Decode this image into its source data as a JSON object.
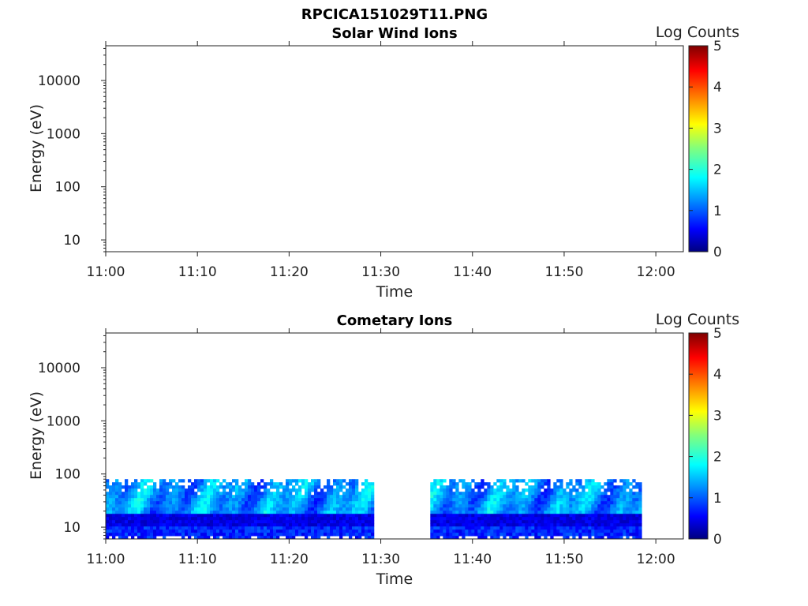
{
  "figure_title": "RPCICA151029T11.PNG",
  "chart_data": [
    {
      "type": "heatmap",
      "title": "Solar Wind Ions",
      "xlabel": "Time",
      "ylabel": "Energy (eV)",
      "x_ticks": [
        "11:00",
        "11:10",
        "11:20",
        "11:30",
        "11:40",
        "11:50",
        "12:00"
      ],
      "xlim_minutes": [
        0,
        63
      ],
      "y_scale": "log",
      "ylim": [
        6,
        45000
      ],
      "y_ticks": [
        "10",
        "100",
        "1000",
        "10000"
      ],
      "colorbar": {
        "label": "Log Counts",
        "range": [
          0,
          5
        ],
        "ticks": [
          "0",
          "1",
          "2",
          "3",
          "4",
          "5"
        ],
        "colormap": "jet"
      },
      "data_blocks": []
    },
    {
      "type": "heatmap",
      "title": "Cometary Ions",
      "xlabel": "Time",
      "ylabel": "Energy (eV)",
      "x_ticks": [
        "11:00",
        "11:10",
        "11:20",
        "11:30",
        "11:40",
        "11:50",
        "12:00"
      ],
      "xlim_minutes": [
        0,
        63
      ],
      "y_scale": "log",
      "ylim": [
        6,
        45000
      ],
      "y_ticks": [
        "10",
        "100",
        "1000",
        "10000"
      ],
      "colorbar": {
        "label": "Log Counts",
        "range": [
          0,
          5
        ],
        "ticks": [
          "0",
          "1",
          "2",
          "3",
          "4",
          "5"
        ],
        "colormap": "jet"
      },
      "data_blocks": [
        {
          "t_start_min": 0,
          "t_end_min": 29.2,
          "e_min": 6,
          "e_max": 80
        },
        {
          "t_start_min": 35.4,
          "t_end_min": 58.2,
          "e_min": 6,
          "e_max": 80
        }
      ]
    }
  ]
}
